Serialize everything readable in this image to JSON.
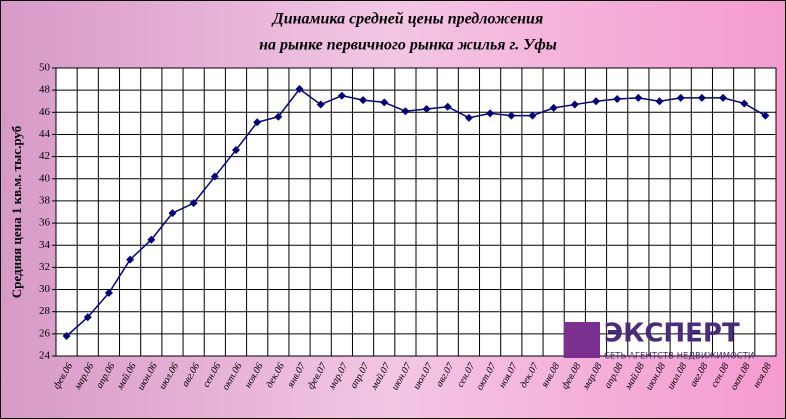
{
  "chart_data": {
    "type": "line",
    "title": [
      "Динамика средней цены предложения",
      "на рынке первичного рынка жилья г. Уфы"
    ],
    "y_label": "Средняя цена 1 кв.м. тыс.руб",
    "categories": [
      "фев.06",
      "мар.06",
      "апр.06",
      "май.06",
      "июн.06",
      "июл.06",
      "авг.06",
      "сен.06",
      "окт.06",
      "ноя.06",
      "дек.06",
      "янв.07",
      "фев.07",
      "мар.07",
      "апр.07",
      "май.07",
      "июн.07",
      "июл.07",
      "авг.07",
      "сен.07",
      "окт.07",
      "ноя.07",
      "дек.07",
      "янв.08",
      "фев.08",
      "мар.08",
      "апр.08",
      "май.08",
      "июн.08",
      "июл.08",
      "авг.08",
      "сен.08",
      "окт.08",
      "ноя.08"
    ],
    "values": [
      25.8,
      27.5,
      29.7,
      32.7,
      34.5,
      36.9,
      37.8,
      40.2,
      42.6,
      45.1,
      45.6,
      48.1,
      46.7,
      47.5,
      47.1,
      46.9,
      46.1,
      46.3,
      46.5,
      45.5,
      45.9,
      45.7,
      45.7,
      46.4,
      46.7,
      47.0,
      47.2,
      47.3,
      47.0,
      47.3,
      47.3,
      47.3,
      46.8,
      45.7
    ],
    "color": "#000080",
    "ylim": [
      24,
      50
    ],
    "yticks": [
      24,
      26,
      28,
      30,
      32,
      34,
      36,
      38,
      40,
      42,
      44,
      46,
      48,
      50
    ],
    "grid": true,
    "logo_text": "ЭКСПЕРТ",
    "logo_subtext": "СЕТЬ АГЕНТСТВ НЕДВИЖИМОСТИ"
  }
}
